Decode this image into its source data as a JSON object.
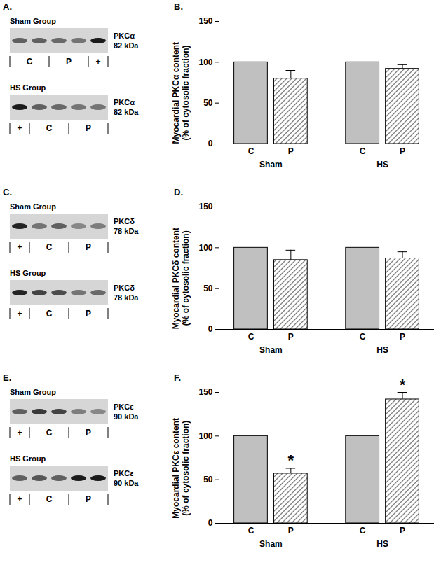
{
  "chart_data": [
    {
      "type": "bar",
      "title": "B.",
      "ylabel": [
        "Myocardial PKCα content",
        "(% of cytosolic fraction)"
      ],
      "categories": [
        "C",
        "P",
        "C",
        "P"
      ],
      "groups": [
        "Sham",
        "Sham",
        "HS",
        "HS"
      ],
      "values": [
        100,
        80,
        100,
        92
      ],
      "errors": [
        null,
        10,
        null,
        5
      ],
      "colors": [
        "#c0c0c0",
        "#808080",
        "#c0c0c0",
        "#808080"
      ],
      "ylim": [
        0,
        150
      ],
      "yticks": [
        0,
        50,
        100,
        150
      ]
    },
    {
      "type": "bar",
      "title": "D.",
      "ylabel": [
        "Myocardial PKCδ content",
        "(% of cytosolic fraction)"
      ],
      "categories": [
        "C",
        "P",
        "C",
        "P"
      ],
      "groups": [
        "Sham",
        "Sham",
        "HS",
        "HS"
      ],
      "values": [
        100,
        85,
        100,
        87
      ],
      "errors": [
        null,
        12,
        null,
        8
      ],
      "colors": [
        "#c0c0c0",
        "#808080",
        "#c0c0c0",
        "#808080"
      ],
      "ylim": [
        0,
        150
      ],
      "yticks": [
        0,
        50,
        100,
        150
      ]
    },
    {
      "type": "bar",
      "title": "F.",
      "ylabel": [
        "Myocardial PKCε content",
        "(% of cytosolic fraction)"
      ],
      "categories": [
        "C",
        "P",
        "C",
        "P"
      ],
      "groups": [
        "Sham",
        "Sham",
        "HS",
        "HS"
      ],
      "values": [
        100,
        57,
        100,
        142
      ],
      "errors": [
        null,
        6,
        null,
        8
      ],
      "annotations": [
        null,
        "*",
        null,
        "*"
      ],
      "colors": [
        "#c0c0c0",
        "#808080",
        "#c0c0c0",
        "#808080"
      ],
      "ylim": [
        0,
        150
      ],
      "yticks": [
        0,
        50,
        100,
        150
      ]
    }
  ],
  "blots": [
    {
      "title": "A.",
      "protein": "PKCα",
      "size": "82 kDa",
      "rows": [
        {
          "title": "Sham Group",
          "lanes": [
            {
              "label": "C",
              "bands": [
                0.6,
                0.6
              ]
            },
            {
              "label": "P",
              "bands": [
                0.55,
                0.5
              ]
            },
            {
              "label": "+",
              "bands": [
                0.95
              ]
            }
          ]
        },
        {
          "title": "HS Group",
          "lanes": [
            {
              "label": "+",
              "bands": [
                0.95
              ]
            },
            {
              "label": "C",
              "bands": [
                0.6,
                0.55
              ]
            },
            {
              "label": "P",
              "bands": [
                0.5,
                0.5
              ]
            }
          ]
        }
      ]
    },
    {
      "title": "C.",
      "protein": "PKCδ",
      "size": "78 kDa",
      "rows": [
        {
          "title": "Sham Group",
          "lanes": [
            {
              "label": "+",
              "bands": [
                0.9
              ]
            },
            {
              "label": "C",
              "bands": [
                0.5,
                0.6
              ]
            },
            {
              "label": "P",
              "bands": [
                0.4,
                0.45
              ]
            }
          ]
        },
        {
          "title": "HS Group",
          "lanes": [
            {
              "label": "+",
              "bands": [
                0.9
              ]
            },
            {
              "label": "C",
              "bands": [
                0.75,
                0.7
              ]
            },
            {
              "label": "P",
              "bands": [
                0.5,
                0.55
              ]
            }
          ]
        }
      ]
    },
    {
      "title": "E.",
      "protein": "PKCε",
      "size": "90 kDa",
      "rows": [
        {
          "title": "Sham Group",
          "lanes": [
            {
              "label": "+",
              "bands": [
                0.6
              ]
            },
            {
              "label": "C",
              "bands": [
                0.8,
                0.75
              ]
            },
            {
              "label": "P",
              "bands": [
                0.45,
                0.4
              ]
            }
          ]
        },
        {
          "title": "HS Group",
          "lanes": [
            {
              "label": "+",
              "bands": [
                0.6
              ]
            },
            {
              "label": "C",
              "bands": [
                0.65,
                0.6
              ]
            },
            {
              "label": "P",
              "bands": [
                0.95,
                0.95
              ]
            }
          ]
        }
      ]
    }
  ]
}
